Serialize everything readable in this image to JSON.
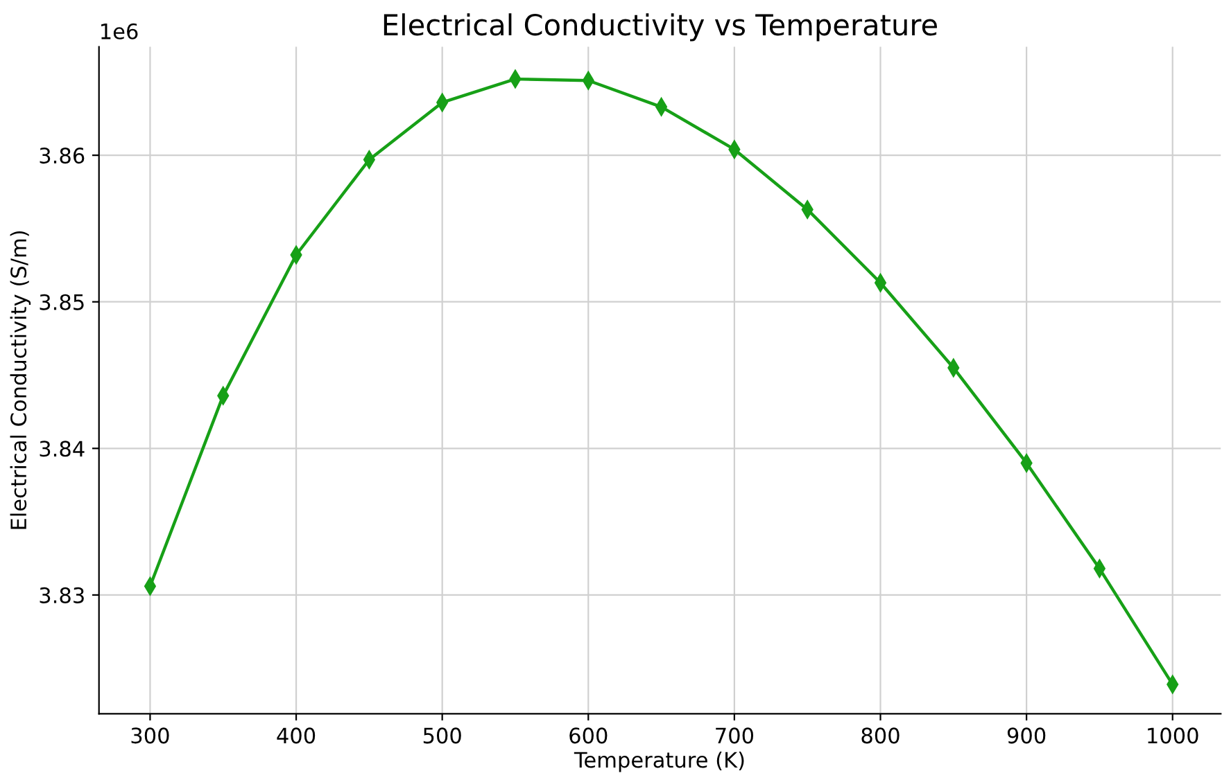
{
  "chart_data": {
    "type": "line",
    "title": "Electrical Conductivity vs Temperature",
    "xlabel": "Temperature (K)",
    "ylabel": "Electrical Conductivity (S/m)",
    "x": [
      300,
      350,
      400,
      450,
      500,
      550,
      600,
      650,
      700,
      750,
      800,
      850,
      900,
      950,
      1000
    ],
    "series": [
      {
        "color": "#17a017",
        "values": [
          3.8306,
          3.8436,
          3.8532,
          3.8597,
          3.8636,
          3.8652,
          3.8651,
          3.8633,
          3.8604,
          3.8563,
          3.8513,
          3.8455,
          3.839,
          3.8318,
          3.8239
        ]
      }
    ],
    "xlim": [
      265,
      1033
    ],
    "xticks": [
      300,
      400,
      500,
      600,
      700,
      800,
      900,
      1000
    ],
    "ylim": [
      3.8219,
      3.8674
    ],
    "yticks": [
      3.83,
      3.84,
      3.85,
      3.86
    ],
    "annotations": [
      "1e6"
    ],
    "grid": true,
    "marker": "diamond",
    "line_style": "solid"
  }
}
